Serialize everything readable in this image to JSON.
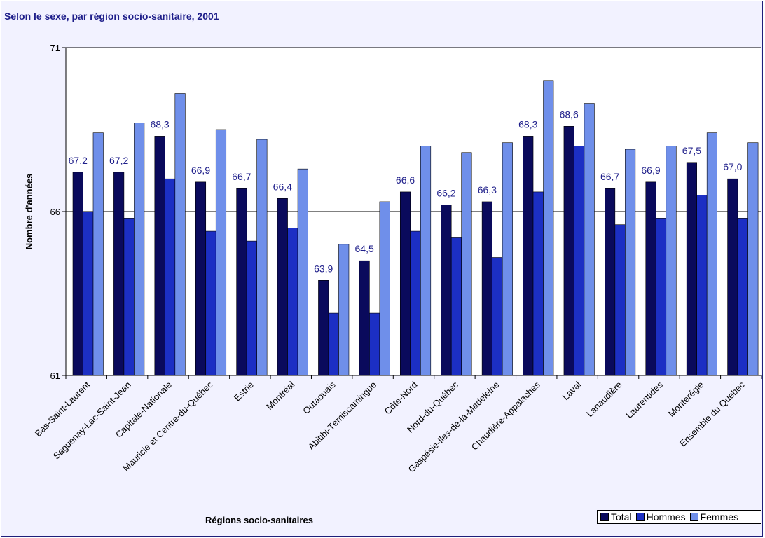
{
  "chart_data": {
    "type": "bar",
    "title": "Selon le sexe, par région socio-sanitaire, 2001",
    "xlabel": "Régions socio-sanitaires",
    "ylabel": "Nombre d'années",
    "ylim": [
      61,
      71
    ],
    "yticks": [
      "61",
      "66",
      "71"
    ],
    "grid": "horizontal",
    "legend_position": "bottom-right",
    "categories": [
      "Bas-Saint-Laurent",
      "Saguenay-Lac-Saint-Jean",
      "Capitale-Nationale",
      "Mauricie et Centre-du-Québec",
      "Estrie",
      "Montréal",
      "Outaouais",
      "Abitibi-Témiscamingue",
      "Côte-Nord",
      "Nord-du-Québec",
      "Gaspésie-Iles-de-la-Madeleine",
      "Chaudière-Appalaches",
      "Laval",
      "Lanaudière",
      "Laurentides",
      "Montérégie",
      "Ensemble du Québec"
    ],
    "series": [
      {
        "name": "Total",
        "color": "#0a0a5c",
        "values": [
          67.2,
          67.2,
          68.3,
          66.9,
          66.7,
          66.4,
          63.9,
          64.5,
          66.6,
          66.2,
          66.3,
          68.3,
          68.6,
          66.7,
          66.9,
          67.5,
          67.0
        ],
        "labels": [
          "67,2",
          "67,2",
          "68,3",
          "66,9",
          "66,7",
          "66,4",
          "63,9",
          "64,5",
          "66,6",
          "66,2",
          "66,3",
          "68,3",
          "68,6",
          "66,7",
          "66,9",
          "67,5",
          "67,0"
        ]
      },
      {
        "name": "Hommes",
        "color": "#1c2fc4",
        "values": [
          66.0,
          65.8,
          67.0,
          65.4,
          65.1,
          65.5,
          62.9,
          62.9,
          65.4,
          65.2,
          64.6,
          66.6,
          68.0,
          65.6,
          65.8,
          66.5,
          65.8
        ]
      },
      {
        "name": "Femmes",
        "color": "#6f8fea",
        "values": [
          68.4,
          68.7,
          69.6,
          68.5,
          68.2,
          67.3,
          65.0,
          66.3,
          68.0,
          67.8,
          68.1,
          70.0,
          69.3,
          67.9,
          68.0,
          68.4,
          68.1
        ]
      }
    ]
  }
}
